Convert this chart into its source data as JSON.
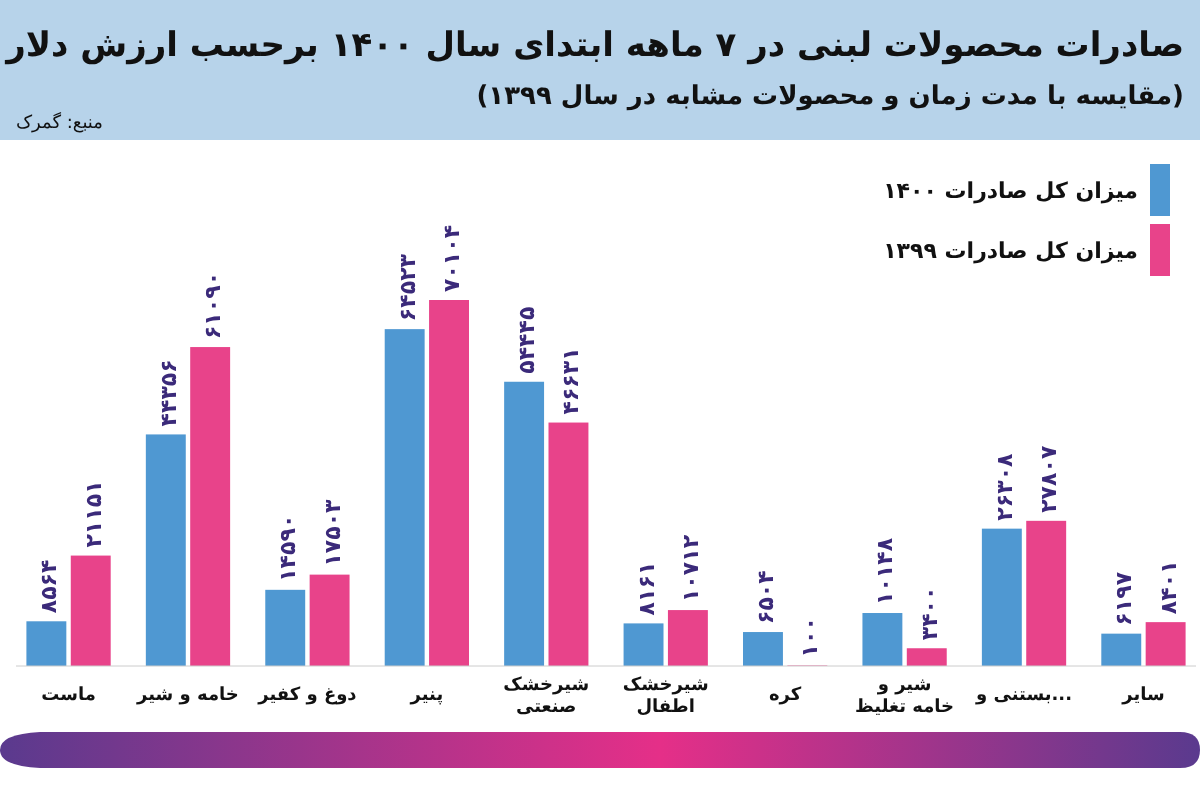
{
  "chart_data": {
    "type": "bar",
    "title": "صادرات محصولات لبنی در ۷ ماهه ابتدای سال ۱۴۰۰ برحسب ارزش دلار",
    "subtitle": "(مقایسه با مدت زمان و محصولات مشابه در سال ۱۳۹۹)",
    "annotations": [
      "منبع: گمرک"
    ],
    "categories": [
      "ماست",
      "خامه و شیر",
      "دوغ و کفیر",
      "پنیر",
      "شیرخشک صنعتی",
      "شیرخشک اطفال",
      "کره",
      "شیر و خامه تغلیظ",
      "بستنی و...",
      "سایر"
    ],
    "series": [
      {
        "name": "میزان کل صادرات ۱۴۰۰",
        "color": "#4f98d2",
        "values": [
          8564,
          44356,
          14590,
          64523,
          54445,
          8161,
          6504,
          10148,
          26308,
          6197
        ],
        "value_labels": [
          "۸۵۶۴",
          "۴۴۳۵۶",
          "۱۴۵۹۰",
          "۶۴۵۲۳",
          "۵۴۴۴۵",
          "۸۱۶۱",
          "۶۵۰۴",
          "۱۰۱۴۸",
          "۲۶۳۰۸",
          "۶۱۹۷"
        ]
      },
      {
        "name": "میزان کل صادرات ۱۳۹۹",
        "color": "#e8438a",
        "values": [
          21151,
          61090,
          17503,
          70104,
          46631,
          10712,
          100,
          3400,
          27807,
          8401
        ],
        "value_labels": [
          "۲۱۱۵۱",
          "۶۱۰۹۰",
          "۱۷۵۰۳",
          "۷۰۱۰۴",
          "۴۶۶۳۱",
          "۱۰۷۱۲",
          "۱۰۰",
          "۳۴۰۰",
          "۲۷۸۰۷",
          "۸۴۰۱"
        ]
      }
    ],
    "legend": "top right"
  }
}
